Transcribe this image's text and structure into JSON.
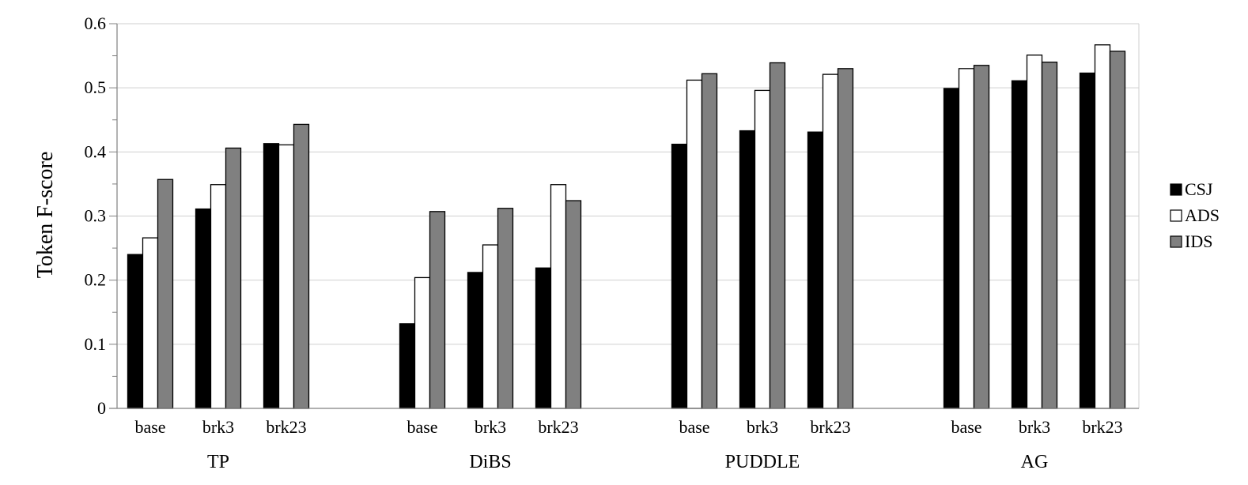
{
  "chart_data": {
    "type": "bar",
    "title": "",
    "xlabel": "",
    "ylabel": "Token F-score",
    "ylim": [
      0,
      0.6
    ],
    "yticks": [
      "0",
      "0.1",
      "0.2",
      "0.3",
      "0.4",
      "0.5",
      "0.6"
    ],
    "grid": true,
    "legend_position": "right",
    "groups": [
      {
        "label": "TP",
        "categories": [
          "base",
          "brk3",
          "brk23"
        ],
        "series": [
          {
            "name": "CSJ",
            "values": [
              0.24,
              0.311,
              0.413
            ]
          },
          {
            "name": "ADS",
            "values": [
              0.266,
              0.349,
              0.411
            ]
          },
          {
            "name": "IDS",
            "values": [
              0.357,
              0.406,
              0.443
            ]
          }
        ]
      },
      {
        "label": "DiBS",
        "categories": [
          "base",
          "brk3",
          "brk23"
        ],
        "series": [
          {
            "name": "CSJ",
            "values": [
              0.132,
              0.212,
              0.219
            ]
          },
          {
            "name": "ADS",
            "values": [
              0.204,
              0.255,
              0.349
            ]
          },
          {
            "name": "IDS",
            "values": [
              0.307,
              0.312,
              0.324
            ]
          }
        ]
      },
      {
        "label": "PUDDLE",
        "categories": [
          "base",
          "brk3",
          "brk23"
        ],
        "series": [
          {
            "name": "CSJ",
            "values": [
              0.412,
              0.433,
              0.431
            ]
          },
          {
            "name": "ADS",
            "values": [
              0.512,
              0.496,
              0.521
            ]
          },
          {
            "name": "IDS",
            "values": [
              0.522,
              0.539,
              0.53
            ]
          }
        ]
      },
      {
        "label": "AG",
        "categories": [
          "base",
          "brk3",
          "brk23"
        ],
        "series": [
          {
            "name": "CSJ",
            "values": [
              0.499,
              0.511,
              0.523
            ]
          },
          {
            "name": "ADS",
            "values": [
              0.53,
              0.551,
              0.567
            ]
          },
          {
            "name": "IDS",
            "values": [
              0.535,
              0.54,
              0.557
            ]
          }
        ]
      }
    ],
    "legend": [
      {
        "name": "CSJ",
        "color": "#000000"
      },
      {
        "name": "ADS",
        "color": "#ffffff"
      },
      {
        "name": "IDS",
        "color": "#808080"
      }
    ]
  }
}
